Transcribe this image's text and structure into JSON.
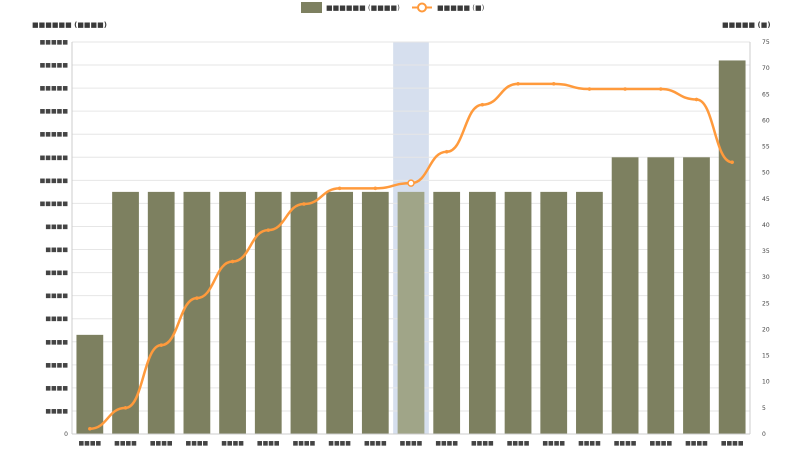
{
  "chart_data": {
    "type": "bar",
    "categories": [
      "■■■■",
      "■■■■",
      "■■■■",
      "■■■■",
      "■■■■",
      "■■■■",
      "■■■■",
      "■■■■",
      "■■■■",
      "■■■■",
      "■■■■",
      "■■■■",
      "■■■■",
      "■■■■",
      "■■■■",
      "■■■■",
      "■■■■",
      "■■■■",
      "■■■■"
    ],
    "series": [
      {
        "name": "■■■■■■ (■■■■)",
        "type": "bar",
        "axis": "left",
        "color": "#7d8060",
        "values": [
          4300,
          10500,
          10500,
          10500,
          10500,
          10500,
          10500,
          10500,
          10500,
          10500,
          10500,
          10500,
          10500,
          10500,
          10500,
          12000,
          12000,
          12000,
          16200
        ]
      },
      {
        "name": "■■■■■ (■)",
        "type": "line",
        "axis": "right",
        "color": "#ff9a3c",
        "values": [
          1,
          5,
          17,
          26,
          33,
          39,
          44,
          47,
          47,
          48,
          54,
          63,
          67,
          67,
          66,
          66,
          66,
          64,
          52
        ]
      }
    ],
    "highlight_index": 9,
    "highlight_color": "#d6dfee",
    "left_axis": {
      "title": "■■■■■■ (■■■■)",
      "min": 0,
      "max": 17000,
      "step": 1000,
      "tick_labels": [
        "0",
        "■■■■",
        "■■■■",
        "■■■■",
        "■■■■",
        "■■■■",
        "■■■■",
        "■■■■",
        "■■■■",
        "■■■■",
        "■■■■■",
        "■■■■■",
        "■■■■■",
        "■■■■■",
        "■■■■■",
        "■■■■■",
        "■■■■■",
        "■■■■■"
      ]
    },
    "right_axis": {
      "title": "■■■■■ (■)",
      "min": 0,
      "max": 75,
      "step": 5,
      "tick_labels": [
        "0",
        "5",
        "10",
        "15",
        "20",
        "25",
        "30",
        "35",
        "40",
        "45",
        "50",
        "55",
        "60",
        "65",
        "70",
        "75"
      ]
    },
    "grid": true,
    "legend_position": "top-center"
  }
}
